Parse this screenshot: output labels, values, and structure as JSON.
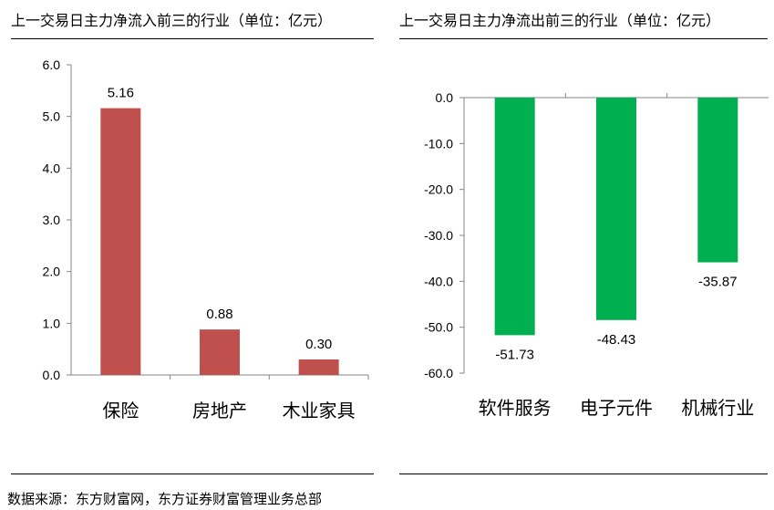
{
  "colors": {
    "inflow": "#c0504d",
    "outflow": "#00b050",
    "axis": "#868686"
  },
  "chart_data": [
    {
      "type": "bar",
      "title": "上一交易日主力净流入前三的行业（单位：亿元）",
      "categories": [
        "保险",
        "房地产",
        "木业家具"
      ],
      "values": [
        5.16,
        0.88,
        0.3
      ],
      "value_labels": [
        "5.16",
        "0.88",
        "0.30"
      ],
      "ylim": [
        0,
        6
      ],
      "yticks": [
        "6.0",
        "5.0",
        "4.0",
        "3.0",
        "2.0",
        "1.0",
        "0.0"
      ],
      "ytick_values": [
        6,
        5,
        4,
        3,
        2,
        1,
        0
      ],
      "grid": false,
      "legend": "none"
    },
    {
      "type": "bar",
      "title": "上一交易日主力净流出前三的行业（单位：亿元）",
      "categories": [
        "软件服务",
        "电子元件",
        "机械行业"
      ],
      "values": [
        -51.73,
        -48.43,
        -35.87
      ],
      "value_labels": [
        "-51.73",
        "-48.43",
        "-35.87"
      ],
      "ylim": [
        -60,
        0
      ],
      "yticks": [
        "0.0",
        "-10.0",
        "-20.0",
        "-30.0",
        "-40.0",
        "-50.0",
        "-60.0"
      ],
      "ytick_values": [
        0,
        -10,
        -20,
        -30,
        -40,
        -50,
        -60
      ],
      "grid": false,
      "legend": "none"
    }
  ],
  "source": "数据来源：东方财富网，东方证券财富管理业务总部"
}
